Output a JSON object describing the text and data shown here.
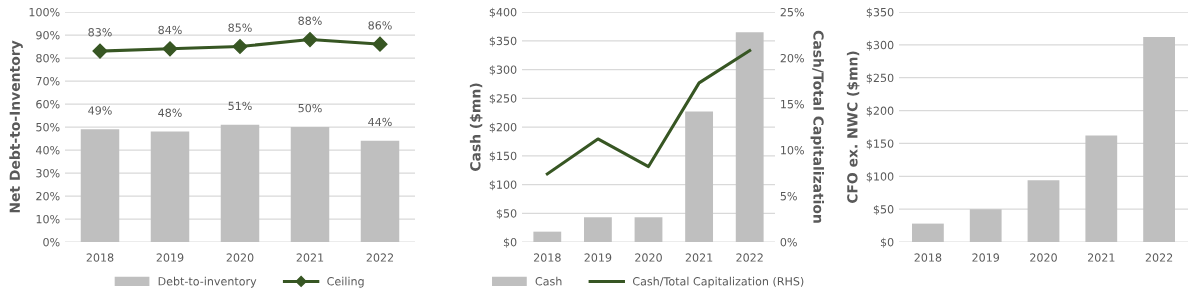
{
  "chart_data": [
    {
      "type": "bar",
      "categories": [
        "2018",
        "2019",
        "2020",
        "2021",
        "2022"
      ],
      "ylabel": "Net Debt-to-Inventory",
      "series": [
        {
          "name": "Debt-to-inventory",
          "type": "bar",
          "color": "#bfbfbf",
          "values": [
            49,
            48,
            51,
            50,
            44
          ],
          "value_labels": [
            "49%",
            "48%",
            "51%",
            "50%",
            "44%"
          ]
        },
        {
          "name": "Ceiling",
          "type": "line",
          "color": "#375623",
          "marker": "diamond",
          "values": [
            83,
            84,
            85,
            88,
            86
          ],
          "value_labels": [
            "83%",
            "84%",
            "85%",
            "88%",
            "86%"
          ]
        }
      ],
      "ylim": [
        0,
        100
      ],
      "yticks": [
        {
          "value": 0,
          "label": "0%"
        },
        {
          "value": 10,
          "label": "10%"
        },
        {
          "value": 20,
          "label": "20%"
        },
        {
          "value": 30,
          "label": "30%"
        },
        {
          "value": 40,
          "label": "40%"
        },
        {
          "value": 50,
          "label": "50%"
        },
        {
          "value": 60,
          "label": "60%"
        },
        {
          "value": 70,
          "label": "70%"
        },
        {
          "value": 80,
          "label": "80%"
        },
        {
          "value": 90,
          "label": "90%"
        },
        {
          "value": 100,
          "label": "100%"
        }
      ],
      "grid": "y",
      "legend": "bottom"
    },
    {
      "type": "bar",
      "categories": [
        "2018",
        "2019",
        "2020",
        "2021",
        "2022"
      ],
      "ylabel": "Cash ($mn)",
      "y2label": "Cash/Total Capitalization",
      "series": [
        {
          "name": "Cash",
          "type": "bar",
          "color": "#bfbfbf",
          "values": [
            18,
            43,
            43,
            227,
            365
          ]
        },
        {
          "name": "Cash/Total Capitalization (RHS)",
          "type": "line",
          "axis": "y2",
          "color": "#375623",
          "values": [
            7.4,
            11.2,
            8.2,
            17.3,
            20.8
          ]
        }
      ],
      "ylim": [
        0,
        400
      ],
      "yticks": [
        {
          "value": 0,
          "label": "$0"
        },
        {
          "value": 50,
          "label": "$50"
        },
        {
          "value": 100,
          "label": "$100"
        },
        {
          "value": 150,
          "label": "$150"
        },
        {
          "value": 200,
          "label": "$200"
        },
        {
          "value": 250,
          "label": "$250"
        },
        {
          "value": 300,
          "label": "$300"
        },
        {
          "value": 350,
          "label": "$350"
        },
        {
          "value": 400,
          "label": "$400"
        }
      ],
      "y2lim": [
        0,
        25
      ],
      "y2ticks": [
        {
          "value": 0,
          "label": "0%"
        },
        {
          "value": 5,
          "label": "5%"
        },
        {
          "value": 10,
          "label": "10%"
        },
        {
          "value": 15,
          "label": "15%"
        },
        {
          "value": 20,
          "label": "20%"
        },
        {
          "value": 25,
          "label": "25%"
        }
      ],
      "grid": "y",
      "legend": "bottom"
    },
    {
      "type": "bar",
      "categories": [
        "2018",
        "2019",
        "2020",
        "2021",
        "2022"
      ],
      "ylabel": "CFO ex. NWC ($mn)",
      "color": "#bfbfbf",
      "values": [
        28,
        50,
        94,
        162,
        312
      ],
      "ylim": [
        0,
        350
      ],
      "yticks": [
        {
          "value": 0,
          "label": "$0"
        },
        {
          "value": 50,
          "label": "$50"
        },
        {
          "value": 100,
          "label": "$100"
        },
        {
          "value": 150,
          "label": "$150"
        },
        {
          "value": 200,
          "label": "$200"
        },
        {
          "value": 250,
          "label": "$250"
        },
        {
          "value": 300,
          "label": "$300"
        },
        {
          "value": 350,
          "label": "$350"
        }
      ],
      "grid": "y"
    }
  ]
}
